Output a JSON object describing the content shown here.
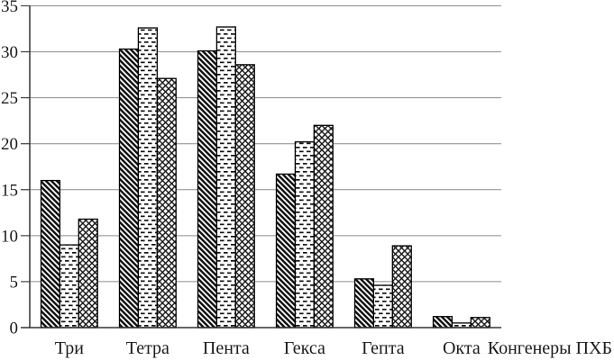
{
  "chart_data": {
    "type": "bar",
    "title": "",
    "xlabel": "Конгенеры ПХБ",
    "ylabel": "",
    "categories": [
      "Три",
      "Тетра",
      "Пента",
      "Гекса",
      "Гепта",
      "Окта"
    ],
    "series": [
      {
        "name": "series-1",
        "pattern": "diagonal-hatch",
        "values": [
          16.0,
          30.3,
          30.1,
          16.7,
          5.3,
          1.2
        ]
      },
      {
        "name": "series-2",
        "pattern": "horizontal-dashes",
        "values": [
          9.0,
          32.6,
          32.7,
          20.2,
          4.6,
          0.5
        ]
      },
      {
        "name": "series-3",
        "pattern": "crosshatch",
        "values": [
          11.8,
          27.1,
          28.6,
          22.0,
          8.9,
          1.1
        ]
      }
    ],
    "ylim": [
      0,
      35
    ],
    "ytick_step": 5,
    "ytick_labels": [
      "0",
      "5",
      "10",
      "15",
      "20",
      "25",
      "30",
      "35"
    ],
    "grid": true,
    "legend_position": "none",
    "colors": {
      "background": "#ffffff",
      "bar_fill": "#ffffff",
      "bar_outline": "#000000",
      "pattern_ink": "#141414",
      "gridline": "#8c8c8c",
      "axis": "#333333",
      "text": "#1a1a1a"
    }
  }
}
